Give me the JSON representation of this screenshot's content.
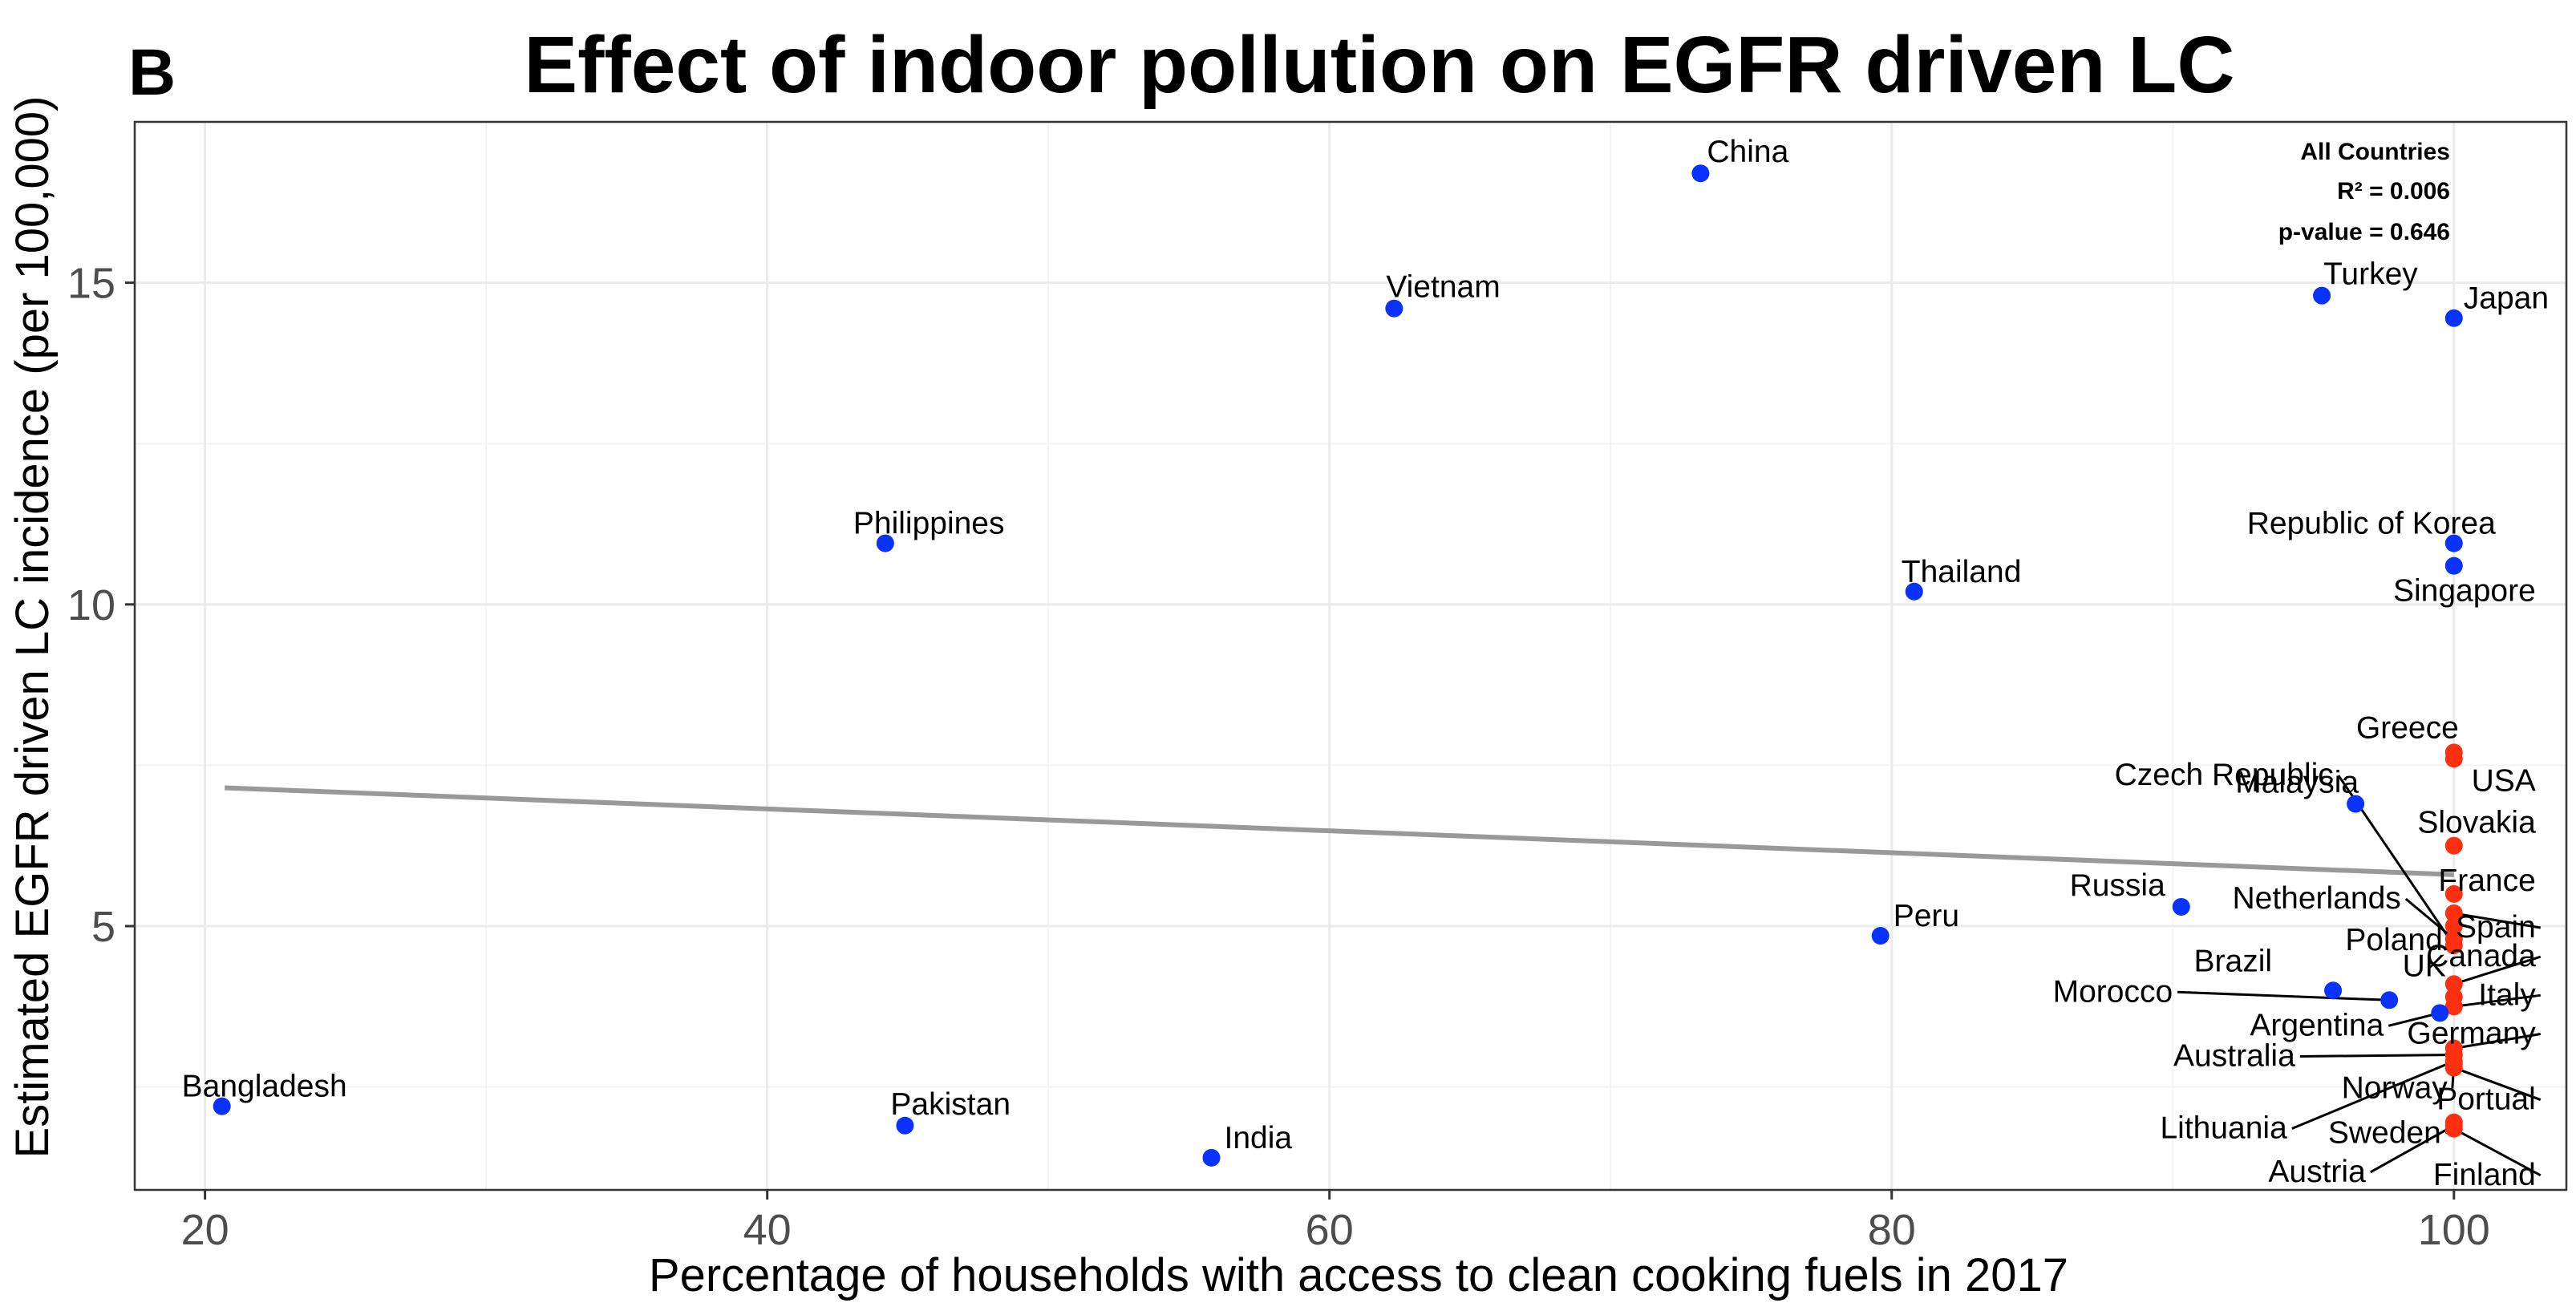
{
  "panel_letter": "B",
  "chart_data": {
    "type": "scatter",
    "title": "Effect of indoor pollution on EGFR driven LC",
    "xlabel": "Percentage of households with access to clean cooking fuels in 2017",
    "ylabel": "Estimated EGFR driven LC incidence (per 100,000)",
    "xlim": [
      17.5,
      104
    ],
    "ylim": [
      0.9,
      17.5
    ],
    "xticks": [
      20,
      40,
      60,
      80,
      100
    ],
    "yticks": [
      5,
      10,
      15
    ],
    "grid": true,
    "colors": {
      "asia_like": "#0a32ff",
      "western": "#ff3010",
      "trend": "#999999"
    },
    "stats": {
      "group": "All Countries",
      "r2": "R² = 0.006",
      "p": "p-value = 0.646"
    },
    "trend_line": {
      "x": [
        20.7,
        100
      ],
      "y": [
        7.15,
        5.8
      ]
    },
    "points": [
      {
        "name": "China",
        "x": 73.2,
        "y": 16.7,
        "color": "blue"
      },
      {
        "name": "Vietnam",
        "x": 62.3,
        "y": 14.6,
        "color": "blue"
      },
      {
        "name": "Turkey",
        "x": 95.3,
        "y": 14.8,
        "color": "blue"
      },
      {
        "name": "Japan",
        "x": 100,
        "y": 14.45,
        "color": "blue"
      },
      {
        "name": "Philippines",
        "x": 44.2,
        "y": 10.95,
        "color": "blue"
      },
      {
        "name": "Republic of Korea",
        "x": 100,
        "y": 10.95,
        "color": "blue"
      },
      {
        "name": "Singapore",
        "x": 100,
        "y": 10.6,
        "color": "blue"
      },
      {
        "name": "Thailand",
        "x": 80.8,
        "y": 10.2,
        "color": "blue"
      },
      {
        "name": "Greece",
        "x": 100,
        "y": 7.7,
        "color": "red"
      },
      {
        "name": "USA",
        "x": 100,
        "y": 7.6,
        "color": "red"
      },
      {
        "name": "Malaysia",
        "x": 96.5,
        "y": 6.9,
        "color": "blue"
      },
      {
        "name": "Slovakia",
        "x": 100,
        "y": 6.25,
        "color": "red"
      },
      {
        "name": "Czech Republic",
        "x": 100,
        "y": 4.7,
        "color": "red"
      },
      {
        "name": "France",
        "x": 100,
        "y": 5.5,
        "color": "red"
      },
      {
        "name": "Netherlands",
        "x": 100,
        "y": 4.8,
        "color": "red"
      },
      {
        "name": "Poland",
        "x": 100,
        "y": 5.0,
        "color": "red"
      },
      {
        "name": "Spain",
        "x": 100,
        "y": 5.2,
        "color": "red"
      },
      {
        "name": "Russia",
        "x": 90.3,
        "y": 5.3,
        "color": "blue"
      },
      {
        "name": "Peru",
        "x": 79.6,
        "y": 4.85,
        "color": "blue"
      },
      {
        "name": "Canada",
        "x": 100,
        "y": 4.1,
        "color": "red"
      },
      {
        "name": "Brazil",
        "x": 95.7,
        "y": 4.0,
        "color": "blue"
      },
      {
        "name": "UK",
        "x": 100,
        "y": 3.9,
        "color": "red"
      },
      {
        "name": "Morocco",
        "x": 97.7,
        "y": 3.85,
        "color": "blue"
      },
      {
        "name": "Italy",
        "x": 100,
        "y": 3.75,
        "color": "red"
      },
      {
        "name": "Argentina",
        "x": 99.5,
        "y": 3.65,
        "color": "blue"
      },
      {
        "name": "Germany",
        "x": 100,
        "y": 3.1,
        "color": "red"
      },
      {
        "name": "Australia",
        "x": 100,
        "y": 3.0,
        "color": "red"
      },
      {
        "name": "Norway",
        "x": 100,
        "y": 2.85,
        "color": "red"
      },
      {
        "name": "Portual",
        "x": 100,
        "y": 2.8,
        "color": "red"
      },
      {
        "name": "Lithuania",
        "x": 100,
        "y": 2.9,
        "color": "red"
      },
      {
        "name": "Bangladesh",
        "x": 20.6,
        "y": 2.2,
        "color": "blue"
      },
      {
        "name": "Pakistan",
        "x": 44.9,
        "y": 1.9,
        "color": "blue"
      },
      {
        "name": "India",
        "x": 55.8,
        "y": 1.4,
        "color": "blue"
      },
      {
        "name": "Sweden",
        "x": 100,
        "y": 1.95,
        "color": "red"
      },
      {
        "name": "Austria",
        "x": 100,
        "y": 1.9,
        "color": "red"
      },
      {
        "name": "Finland",
        "x": 100,
        "y": 1.85,
        "color": "red"
      }
    ]
  }
}
